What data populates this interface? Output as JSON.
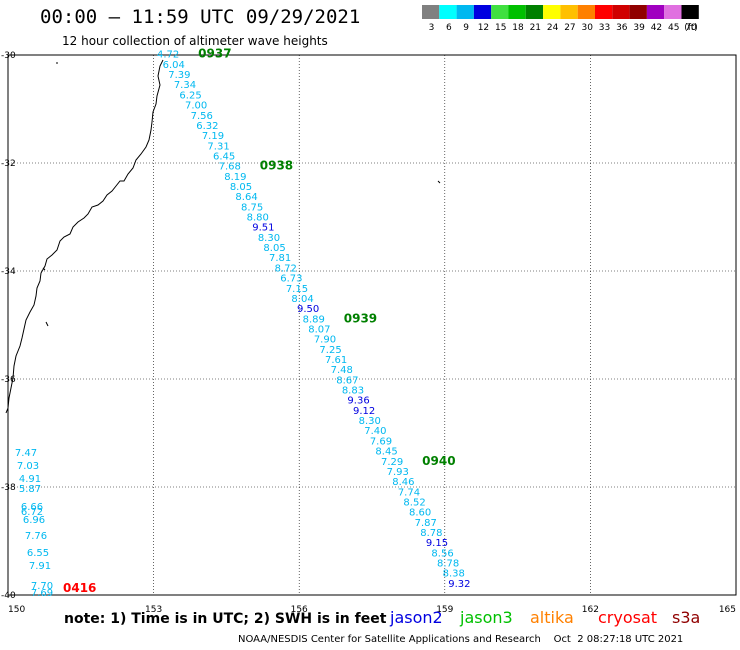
{
  "header": {
    "title": "00:00 – 11:59 UTC 09/29/2021",
    "subtitle": "12 hour collection of altimeter wave heights"
  },
  "legend": {
    "unit": "(ft)",
    "bins": [
      {
        "label": "3",
        "color": "#808080"
      },
      {
        "label": "6",
        "color": "#00ffff"
      },
      {
        "label": "9",
        "color": "#00b8f0"
      },
      {
        "label": "12",
        "color": "#0000e0"
      },
      {
        "label": "15",
        "color": "#40e040"
      },
      {
        "label": "18",
        "color": "#00c000"
      },
      {
        "label": "21",
        "color": "#008000"
      },
      {
        "label": "24",
        "color": "#ffff00"
      },
      {
        "label": "27",
        "color": "#ffc000"
      },
      {
        "label": "30",
        "color": "#ff8000"
      },
      {
        "label": "33",
        "color": "#ff0000"
      },
      {
        "label": "36",
        "color": "#d00000"
      },
      {
        "label": "39",
        "color": "#900000"
      },
      {
        "label": "42",
        "color": "#a000c0"
      },
      {
        "label": "45",
        "color": "#e070e0"
      },
      {
        "label": "70",
        "color": "#000000"
      }
    ]
  },
  "map": {
    "lon_ticks": [
      "150",
      "153",
      "156",
      "159",
      "162",
      "165"
    ],
    "lat_ticks": [
      "-30",
      "-32",
      "-34",
      "-36",
      "-38",
      "-40"
    ],
    "lon_range": [
      150,
      165
    ],
    "lat_range": [
      -30,
      -40
    ]
  },
  "track": {
    "start_lonlat": [
      153.3,
      -30.05
    ],
    "end_lonlat": [
      159.3,
      -39.85
    ],
    "values": [
      "4.72",
      "6.04",
      "7.39",
      "7.34",
      "6.25",
      "7.00",
      "7.56",
      "6.32",
      "7.19",
      "7.31",
      "6.45",
      "7.68",
      "8.19",
      "8.05",
      "8.64",
      "8.75",
      "8.80",
      "9.51",
      "8.30",
      "8.05",
      "7.81",
      "8.72",
      "6.73",
      "7.15",
      "8.04",
      "9.50",
      "8.89",
      "8.07",
      "7.90",
      "7.25",
      "7.61",
      "7.48",
      "8.67",
      "8.83",
      "9.36",
      "9.12",
      "8.30",
      "7.40",
      "7.69",
      "8.45",
      "7.29",
      "7.93",
      "8.46",
      "7.74",
      "8.52",
      "8.60",
      "7.87",
      "8.78",
      "9.15",
      "8.56",
      "8.78",
      "8.38",
      "9.32"
    ],
    "times": [
      {
        "label": "0937",
        "index": 0
      },
      {
        "label": "0938",
        "index": 11
      },
      {
        "label": "0939",
        "index": 26
      },
      {
        "label": "0940",
        "index": 40
      }
    ],
    "color_normal": "#00b8f0",
    "color_high": "#0000e0",
    "time_color": "#008000"
  },
  "track2": {
    "values": [
      "7.47",
      "7.03",
      "4.91",
      "5.87",
      "6.66",
      "6.72",
      "6.96",
      "7.76",
      "6.55",
      "7.91",
      "7.70",
      "7.69"
    ],
    "time": "0416",
    "time_color": "#ff0000"
  },
  "footer": {
    "note": "note:  1) Time is in UTC; 2) SWH is in feet",
    "credit": "NOAA/NESDIS Center for Satellite Applications and Research    Oct  2 08:27:18 UTC 2021",
    "satellites": [
      {
        "name": "jason2",
        "color": "#0000e0"
      },
      {
        "name": "jason3",
        "color": "#00c000"
      },
      {
        "name": "altika",
        "color": "#ff8000"
      },
      {
        "name": "cryosat",
        "color": "#ff0000"
      },
      {
        "name": "s3a",
        "color": "#900000"
      }
    ]
  }
}
